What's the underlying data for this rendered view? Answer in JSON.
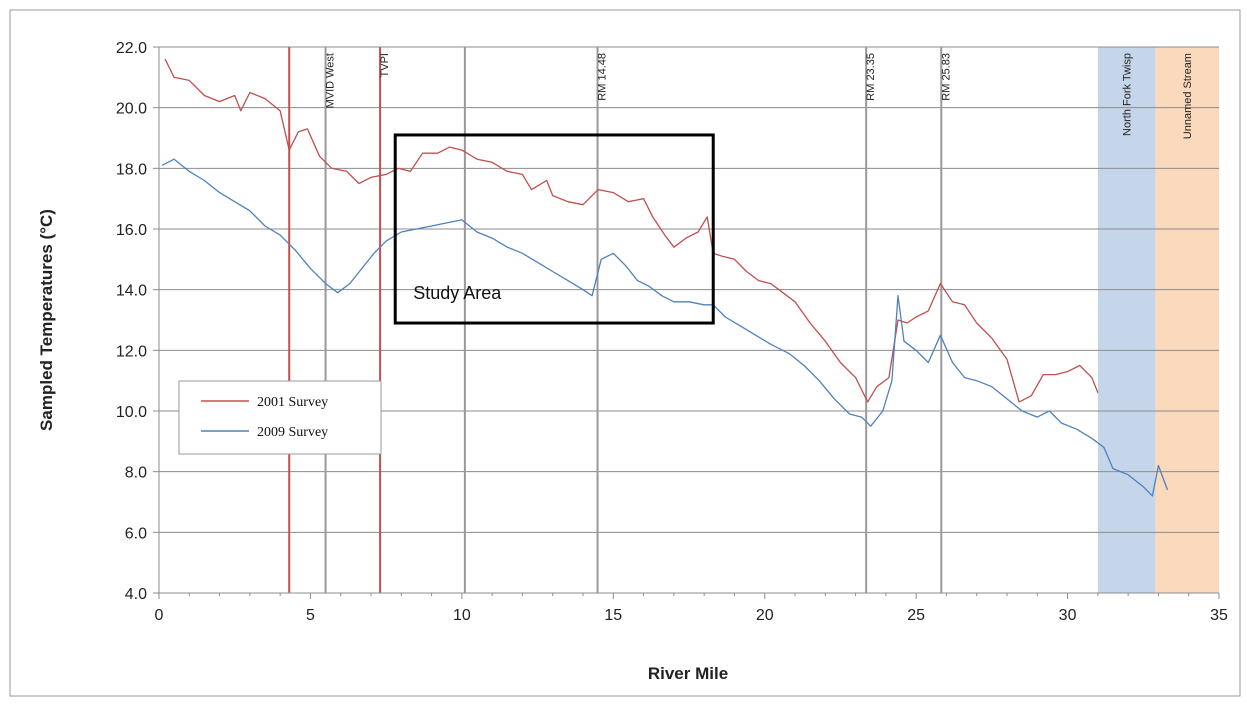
{
  "chart_data": {
    "type": "line",
    "title": "",
    "xlabel": "River Mile",
    "ylabel": "Sampled Temperatures (°C)",
    "xlim": [
      0,
      35
    ],
    "ylim": [
      4.0,
      22.0
    ],
    "x_ticks": [
      "0",
      "5",
      "10",
      "15",
      "20",
      "25",
      "30",
      "35"
    ],
    "y_ticks": [
      "4.0",
      "6.0",
      "8.0",
      "10.0",
      "12.0",
      "14.0",
      "16.0",
      "18.0",
      "20.0",
      "22.0"
    ],
    "grid": "horizontal",
    "legend_position": "left",
    "series": [
      {
        "name": "2001 Survey",
        "color": "#c0504d",
        "points": [
          [
            0.2,
            21.6
          ],
          [
            0.5,
            21.0
          ],
          [
            1.0,
            20.9
          ],
          [
            1.5,
            20.4
          ],
          [
            2.0,
            20.2
          ],
          [
            2.5,
            20.4
          ],
          [
            2.7,
            19.9
          ],
          [
            3.0,
            20.5
          ],
          [
            3.5,
            20.3
          ],
          [
            4.0,
            19.9
          ],
          [
            4.3,
            18.6
          ],
          [
            4.6,
            19.2
          ],
          [
            4.9,
            19.3
          ],
          [
            5.3,
            18.4
          ],
          [
            5.7,
            18.0
          ],
          [
            6.2,
            17.9
          ],
          [
            6.6,
            17.5
          ],
          [
            7.0,
            17.7
          ],
          [
            7.5,
            17.8
          ],
          [
            7.9,
            18.0
          ],
          [
            8.3,
            17.9
          ],
          [
            8.7,
            18.5
          ],
          [
            9.2,
            18.5
          ],
          [
            9.6,
            18.7
          ],
          [
            10.0,
            18.6
          ],
          [
            10.5,
            18.3
          ],
          [
            11.0,
            18.2
          ],
          [
            11.5,
            17.9
          ],
          [
            12.0,
            17.8
          ],
          [
            12.3,
            17.3
          ],
          [
            12.8,
            17.6
          ],
          [
            13.0,
            17.1
          ],
          [
            13.5,
            16.9
          ],
          [
            14.0,
            16.8
          ],
          [
            14.5,
            17.3
          ],
          [
            15.0,
            17.2
          ],
          [
            15.5,
            16.9
          ],
          [
            16.0,
            17.0
          ],
          [
            16.3,
            16.4
          ],
          [
            16.7,
            15.8
          ],
          [
            17.0,
            15.4
          ],
          [
            17.4,
            15.7
          ],
          [
            17.8,
            15.9
          ],
          [
            18.1,
            16.4
          ],
          [
            18.3,
            15.2
          ],
          [
            18.6,
            15.1
          ],
          [
            19.0,
            15.0
          ],
          [
            19.4,
            14.6
          ],
          [
            19.8,
            14.3
          ],
          [
            20.2,
            14.2
          ],
          [
            20.6,
            13.9
          ],
          [
            21.0,
            13.6
          ],
          [
            21.5,
            12.9
          ],
          [
            22.0,
            12.3
          ],
          [
            22.5,
            11.6
          ],
          [
            23.0,
            11.1
          ],
          [
            23.4,
            10.3
          ],
          [
            23.7,
            10.8
          ],
          [
            24.1,
            11.1
          ],
          [
            24.4,
            13.0
          ],
          [
            24.7,
            12.9
          ],
          [
            25.0,
            13.1
          ],
          [
            25.4,
            13.3
          ],
          [
            25.8,
            14.2
          ],
          [
            26.2,
            13.6
          ],
          [
            26.6,
            13.5
          ],
          [
            27.0,
            12.9
          ],
          [
            27.5,
            12.4
          ],
          [
            28.0,
            11.7
          ],
          [
            28.4,
            10.3
          ],
          [
            28.8,
            10.5
          ],
          [
            29.2,
            11.2
          ],
          [
            29.6,
            11.2
          ],
          [
            30.0,
            11.3
          ],
          [
            30.4,
            11.5
          ],
          [
            30.8,
            11.1
          ],
          [
            31.0,
            10.6
          ]
        ]
      },
      {
        "name": "2009 Survey",
        "color": "#4f81bd",
        "points": [
          [
            0.1,
            18.1
          ],
          [
            0.5,
            18.3
          ],
          [
            1.0,
            17.9
          ],
          [
            1.5,
            17.6
          ],
          [
            2.0,
            17.2
          ],
          [
            2.5,
            16.9
          ],
          [
            3.0,
            16.6
          ],
          [
            3.5,
            16.1
          ],
          [
            4.0,
            15.8
          ],
          [
            4.5,
            15.3
          ],
          [
            5.0,
            14.7
          ],
          [
            5.5,
            14.2
          ],
          [
            5.9,
            13.9
          ],
          [
            6.3,
            14.2
          ],
          [
            6.7,
            14.7
          ],
          [
            7.1,
            15.2
          ],
          [
            7.5,
            15.6
          ],
          [
            8.0,
            15.9
          ],
          [
            8.5,
            16.0
          ],
          [
            9.0,
            16.1
          ],
          [
            9.5,
            16.2
          ],
          [
            10.0,
            16.3
          ],
          [
            10.5,
            15.9
          ],
          [
            11.0,
            15.7
          ],
          [
            11.5,
            15.4
          ],
          [
            12.0,
            15.2
          ],
          [
            12.5,
            14.9
          ],
          [
            13.0,
            14.6
          ],
          [
            13.5,
            14.3
          ],
          [
            14.0,
            14.0
          ],
          [
            14.3,
            13.8
          ],
          [
            14.6,
            15.0
          ],
          [
            15.0,
            15.2
          ],
          [
            15.4,
            14.8
          ],
          [
            15.8,
            14.3
          ],
          [
            16.2,
            14.1
          ],
          [
            16.6,
            13.8
          ],
          [
            17.0,
            13.6
          ],
          [
            17.5,
            13.6
          ],
          [
            18.0,
            13.5
          ],
          [
            18.3,
            13.5
          ],
          [
            18.7,
            13.1
          ],
          [
            19.2,
            12.8
          ],
          [
            19.7,
            12.5
          ],
          [
            20.2,
            12.2
          ],
          [
            20.8,
            11.9
          ],
          [
            21.3,
            11.5
          ],
          [
            21.8,
            11.0
          ],
          [
            22.3,
            10.4
          ],
          [
            22.8,
            9.9
          ],
          [
            23.2,
            9.8
          ],
          [
            23.5,
            9.5
          ],
          [
            23.9,
            10.0
          ],
          [
            24.2,
            11.0
          ],
          [
            24.4,
            13.8
          ],
          [
            24.6,
            12.3
          ],
          [
            25.0,
            12.0
          ],
          [
            25.4,
            11.6
          ],
          [
            25.8,
            12.5
          ],
          [
            26.2,
            11.6
          ],
          [
            26.6,
            11.1
          ],
          [
            27.0,
            11.0
          ],
          [
            27.5,
            10.8
          ],
          [
            28.0,
            10.4
          ],
          [
            28.5,
            10.0
          ],
          [
            29.0,
            9.8
          ],
          [
            29.4,
            10.0
          ],
          [
            29.8,
            9.6
          ],
          [
            30.3,
            9.4
          ],
          [
            30.8,
            9.1
          ],
          [
            31.2,
            8.8
          ],
          [
            31.5,
            8.1
          ],
          [
            32.0,
            7.9
          ],
          [
            32.5,
            7.5
          ],
          [
            32.8,
            7.2
          ],
          [
            33.0,
            8.2
          ],
          [
            33.3,
            7.4
          ]
        ]
      }
    ],
    "vertical_markers": [
      {
        "x": 4.3,
        "color": "#c0504d",
        "label": ""
      },
      {
        "x": 5.5,
        "color": "#999999",
        "label": "MVID West"
      },
      {
        "x": 7.3,
        "color": "#c0504d",
        "label": "TVPI"
      },
      {
        "x": 10.1,
        "color": "#999999",
        "label": ""
      },
      {
        "x": 14.48,
        "color": "#999999",
        "label": "RM 14.48"
      },
      {
        "x": 23.35,
        "color": "#999999",
        "label": "RM 23.35"
      },
      {
        "x": 25.83,
        "color": "#999999",
        "label": "RM 25.83"
      }
    ],
    "shaded_regions": [
      {
        "x0": 31.0,
        "x1": 32.9,
        "color": "#c5d5ea",
        "label": "North Fork Twisp"
      },
      {
        "x0": 32.9,
        "x1": 35.0,
        "color": "#fad9bd",
        "label": "Unnamed Stream"
      }
    ],
    "annotation_box": {
      "x0": 7.8,
      "x1": 18.3,
      "y0": 12.9,
      "y1": 19.1,
      "label": "Study Area"
    }
  }
}
